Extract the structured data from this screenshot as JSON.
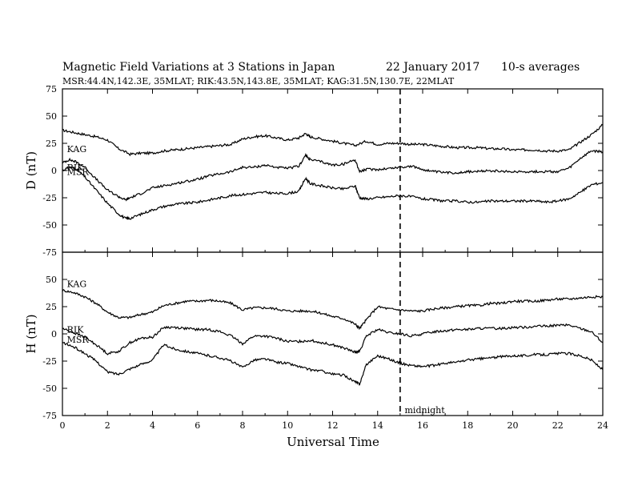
{
  "title": "Magnetic Field Variations at 3 Stations in Japan",
  "date": "22 January  2017",
  "averaging": "10-s averages",
  "subtitle": "MSR:44.4N,142.3E, 35MLAT;  RIK:43.5N,143.8E, 35MLAT;  KAG:31.5N,130.7E, 22MLAT",
  "chart_data": [
    {
      "type": "line",
      "ylabel": "D (nT)",
      "xlabel": "",
      "xlim": [
        0,
        24
      ],
      "ylim": [
        -75,
        75
      ],
      "yticks": [
        75,
        50,
        25,
        0,
        -25,
        -50,
        -75
      ],
      "ytick_labels": [
        "75",
        "50",
        "25",
        "0",
        "-25",
        "-50",
        "-75"
      ],
      "station_labels": [
        {
          "text": "KAG",
          "x": 0.2,
          "y": 17
        },
        {
          "text": "RIK",
          "x": 0.2,
          "y": 0
        },
        {
          "text": "MSR",
          "x": 0.2,
          "y": -4
        }
      ],
      "series": [
        {
          "name": "KAG",
          "x": [
            0,
            0.5,
            1,
            1.5,
            2,
            2.5,
            3,
            3.5,
            4,
            4.5,
            5,
            5.5,
            6,
            6.5,
            7,
            7.5,
            8,
            8.5,
            9,
            9.5,
            10,
            10.5,
            10.8,
            11,
            11.5,
            12,
            12.5,
            13,
            13.5,
            14,
            14.5,
            15,
            15.5,
            16,
            16.5,
            17,
            17.5,
            18,
            18.5,
            19,
            19.5,
            20,
            20.5,
            21,
            21.5,
            22,
            22.5,
            23,
            23.5,
            24
          ],
          "y": [
            37,
            35,
            33,
            31,
            28,
            20,
            15,
            16,
            16,
            18,
            19,
            20,
            21,
            22,
            23,
            24,
            29,
            31,
            32,
            30,
            28,
            30,
            34,
            31,
            29,
            27,
            25,
            23,
            27,
            24,
            25,
            25,
            24,
            24,
            23,
            22,
            21,
            21,
            21,
            20,
            20,
            19,
            19,
            19,
            18,
            18,
            19,
            26,
            33,
            42
          ]
        },
        {
          "name": "RIK",
          "x": [
            0,
            0.3,
            0.6,
            1,
            1.5,
            2,
            2.5,
            2.8,
            3,
            3.5,
            4,
            4.5,
            5,
            5.5,
            6,
            6.5,
            7,
            7.5,
            8,
            8.5,
            9,
            9.5,
            10,
            10.5,
            10.8,
            11,
            11.5,
            12,
            12.5,
            13,
            13.2,
            13.5,
            14,
            14.5,
            15,
            15.5,
            16,
            16.5,
            17,
            17.5,
            18,
            18.5,
            19,
            19.5,
            20,
            20.5,
            21,
            21.5,
            22,
            22.5,
            23,
            23.5,
            24
          ],
          "y": [
            7,
            10,
            8,
            3,
            -8,
            -18,
            -24,
            -27,
            -25,
            -21,
            -16,
            -14,
            -12,
            -10,
            -8,
            -5,
            -3,
            -1,
            3,
            3,
            5,
            3,
            2,
            4,
            14,
            10,
            8,
            5,
            6,
            10,
            -1,
            1,
            1,
            2,
            3,
            4,
            1,
            -1,
            -2,
            -2,
            -1,
            -1,
            0,
            -1,
            -1,
            -1,
            -1,
            -1,
            -1,
            2,
            11,
            18,
            17
          ]
        },
        {
          "name": "MSR",
          "x": [
            0,
            0.3,
            0.6,
            1,
            1.5,
            2,
            2.5,
            2.8,
            3,
            3.5,
            4,
            4.5,
            5,
            5.5,
            6,
            6.5,
            7,
            7.5,
            8,
            8.5,
            9,
            9.5,
            10,
            10.5,
            10.8,
            11,
            11.5,
            12,
            12.5,
            13,
            13.2,
            13.5,
            14,
            14.5,
            15,
            15.5,
            16,
            16.5,
            17,
            17.5,
            18,
            18.5,
            19,
            19.5,
            20,
            20.5,
            21,
            21.5,
            22,
            22.5,
            23,
            23.5,
            24
          ],
          "y": [
            0,
            3,
            2,
            -6,
            -18,
            -30,
            -40,
            -44,
            -44,
            -40,
            -36,
            -33,
            -31,
            -30,
            -29,
            -27,
            -25,
            -23,
            -22,
            -21,
            -20,
            -21,
            -21,
            -19,
            -7,
            -12,
            -14,
            -16,
            -17,
            -14,
            -25,
            -26,
            -25,
            -24,
            -23,
            -24,
            -26,
            -27,
            -28,
            -28,
            -29,
            -29,
            -28,
            -28,
            -28,
            -28,
            -28,
            -29,
            -28,
            -26,
            -20,
            -13,
            -11
          ]
        }
      ]
    },
    {
      "type": "line",
      "ylabel": "H (nT)",
      "xlabel": "Universal Time",
      "xlim": [
        0,
        24
      ],
      "ylim": [
        -75,
        75
      ],
      "xticks": [
        0,
        2,
        4,
        6,
        8,
        10,
        12,
        14,
        16,
        18,
        20,
        22,
        24
      ],
      "xtick_labels": [
        "0",
        "2",
        "4",
        "6",
        "8",
        "10",
        "12",
        "14",
        "16",
        "18",
        "20",
        "22",
        "24"
      ],
      "yticks": [
        50,
        25,
        0,
        -25,
        -50,
        -75
      ],
      "ytick_labels": [
        "50",
        "25",
        "0",
        "-25",
        "-50",
        "-75"
      ],
      "annotation": {
        "text": "midnight",
        "x": 15.2,
        "y": -70
      },
      "vline_x": 15,
      "station_labels": [
        {
          "text": "KAG",
          "x": 0.2,
          "y": 43
        },
        {
          "text": "RIK",
          "x": 0.2,
          "y": 1
        },
        {
          "text": "MSR",
          "x": 0.2,
          "y": -8
        }
      ],
      "series": [
        {
          "name": "KAG",
          "x": [
            0,
            0.5,
            1,
            1.5,
            2,
            2.5,
            3,
            3.5,
            4,
            4.5,
            5,
            5.5,
            6,
            6.5,
            7,
            7.5,
            8,
            8.5,
            9,
            9.5,
            10,
            10.5,
            11,
            11.5,
            12,
            12.5,
            13,
            13.2,
            13.5,
            14,
            14.5,
            15,
            15.5,
            16,
            16.5,
            17,
            17.5,
            18,
            18.5,
            19,
            19.5,
            20,
            20.5,
            21,
            21.5,
            22,
            22.5,
            23,
            23.5,
            24
          ],
          "y": [
            40,
            38,
            34,
            28,
            20,
            15,
            15,
            18,
            20,
            26,
            28,
            30,
            30,
            31,
            30,
            28,
            22,
            24,
            24,
            23,
            21,
            21,
            21,
            19,
            16,
            14,
            9,
            5,
            13,
            25,
            23,
            22,
            21,
            21,
            23,
            24,
            25,
            26,
            26,
            28,
            28,
            30,
            30,
            30,
            31,
            32,
            32,
            33,
            34,
            34
          ]
        },
        {
          "name": "RIK",
          "x": [
            0,
            0.5,
            1,
            1.5,
            2,
            2.5,
            3,
            3.5,
            4,
            4.5,
            5,
            5.5,
            6,
            6.5,
            7,
            7.5,
            8,
            8.5,
            9,
            9.5,
            10,
            10.5,
            11,
            11.5,
            12,
            12.5,
            13,
            13.2,
            13.5,
            14,
            14.5,
            15,
            15.5,
            16,
            16.5,
            17,
            17.5,
            18,
            18.5,
            19,
            19.5,
            20,
            20.5,
            21,
            21.5,
            22,
            22.5,
            23,
            23.5,
            24
          ],
          "y": [
            5,
            1,
            -3,
            -10,
            -18,
            -16,
            -8,
            -4,
            -3,
            6,
            6,
            5,
            4,
            4,
            2,
            -2,
            -9,
            -2,
            -2,
            -4,
            -7,
            -7,
            -6,
            -8,
            -10,
            -13,
            -17,
            -16,
            -2,
            4,
            1,
            0,
            -2,
            0,
            2,
            3,
            4,
            4,
            5,
            5,
            5,
            6,
            6,
            7,
            7,
            8,
            8,
            5,
            2,
            -8
          ]
        },
        {
          "name": "MSR",
          "x": [
            0,
            0.5,
            1,
            1.5,
            2,
            2.5,
            3,
            3.5,
            4,
            4.5,
            5,
            5.5,
            6,
            6.5,
            7,
            7.5,
            8,
            8.5,
            9,
            9.5,
            10,
            10.5,
            11,
            11.5,
            12,
            12.5,
            13,
            13.2,
            13.5,
            14,
            14.5,
            15,
            15.5,
            16,
            16.5,
            17,
            17.5,
            18,
            18.5,
            19,
            19.5,
            20,
            20.5,
            21,
            21.5,
            22,
            22.5,
            23,
            23.5,
            24
          ],
          "y": [
            -8,
            -12,
            -18,
            -25,
            -35,
            -37,
            -32,
            -28,
            -24,
            -10,
            -14,
            -16,
            -18,
            -20,
            -22,
            -25,
            -31,
            -24,
            -23,
            -26,
            -27,
            -30,
            -33,
            -34,
            -37,
            -38,
            -44,
            -46,
            -28,
            -20,
            -23,
            -27,
            -29,
            -30,
            -29,
            -27,
            -26,
            -24,
            -23,
            -22,
            -21,
            -20,
            -20,
            -19,
            -19,
            -18,
            -18,
            -20,
            -24,
            -33
          ]
        }
      ]
    }
  ]
}
